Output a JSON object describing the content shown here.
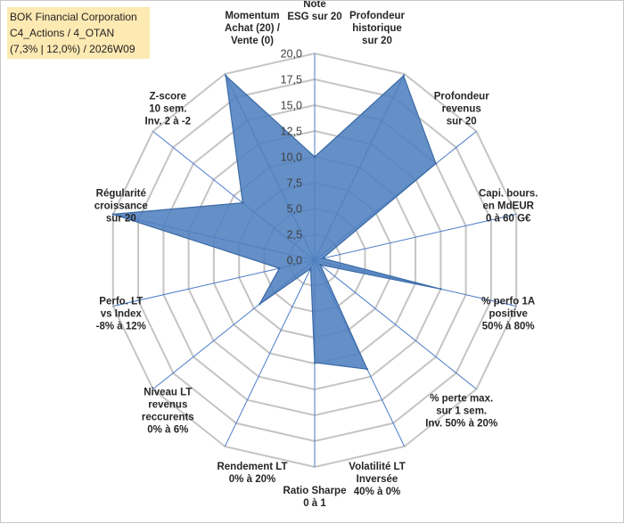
{
  "header": {
    "line1": "BOK Financial Corporation",
    "line2": "C4_Actions / 4_OTAN",
    "line3": "(7,3% | 12,0%) / 2026W09"
  },
  "colors": {
    "series_fill": "#4f7fbf",
    "series_stroke": "#3b6aa5",
    "grid": "#c4c4c4",
    "spokes": "#4a7cc9",
    "header_bg": "#fde9b2"
  },
  "chart_data": {
    "type": "radar",
    "rmin": 0,
    "rmax": 20,
    "rings": 8,
    "ticks": [
      "0,0",
      "2,5",
      "5,0",
      "7,5",
      "10,0",
      "12,5",
      "15,0",
      "17,5",
      "20,0"
    ],
    "axes": [
      {
        "label": [
          "Note",
          "ESG sur 20"
        ],
        "value": 10
      },
      {
        "label": [
          "Profondeur",
          "historique",
          "sur 20"
        ],
        "value": 19.8
      },
      {
        "label": [
          "Profondeur",
          "revenus",
          "sur 20"
        ],
        "value": 15
      },
      {
        "label": [
          "Capi. bours.",
          "en MdEUR",
          "0 à 60 G€"
        ],
        "value": 0.8
      },
      {
        "label": [
          "% perfo 1A",
          "positive",
          "50% à 80%"
        ],
        "value": 12.5
      },
      {
        "label": [
          "% perte max.",
          "sur 1 sem.",
          "Inv. 50% à 20%"
        ],
        "value": 0.7
      },
      {
        "label": [
          "Volatilité LT",
          "Inversée",
          "40% à 0%"
        ],
        "value": 11.7
      },
      {
        "label": [
          "Ratio Sharpe",
          "0 à 1"
        ],
        "value": 9.9
      },
      {
        "label": [
          "Rendement LT",
          "0% à 20%"
        ],
        "value": 0.9
      },
      {
        "label": [
          "Niveau LT",
          "revenus",
          "reccurents",
          "0% à 6%"
        ],
        "value": 6.8
      },
      {
        "label": [
          "Perfo. LT",
          "vs Index",
          "-8% à 12%"
        ],
        "value": 3.5
      },
      {
        "label": [
          "Régularité",
          "croissance",
          "sur 20"
        ],
        "value": 20
      },
      {
        "label": [
          "Z-score",
          "10 sem.",
          "Inv. 2 à -2"
        ],
        "value": 8.9
      },
      {
        "label": [
          "Momentum",
          "Achat (20) /",
          "Vente (0)"
        ],
        "value": 19.8
      }
    ]
  }
}
